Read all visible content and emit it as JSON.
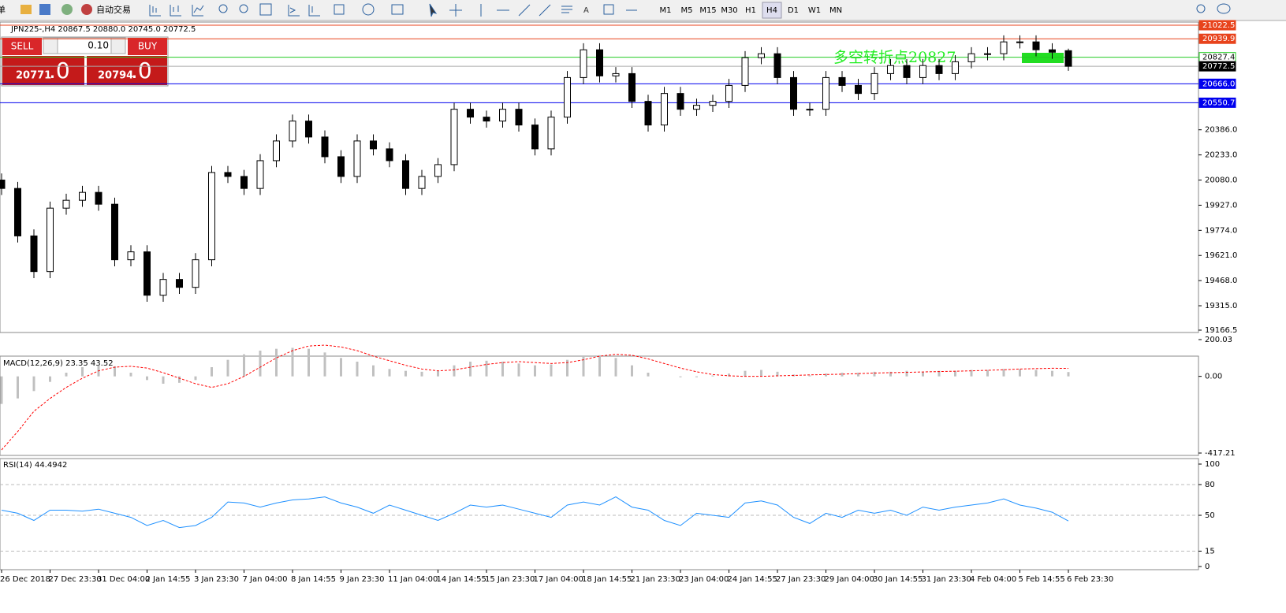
{
  "toolbar": {
    "cut_text": "单",
    "auto_trade": "自动交易",
    "timeframes": [
      "M1",
      "M5",
      "M15",
      "M30",
      "H1",
      "H4",
      "D1",
      "W1",
      "MN"
    ],
    "active_timeframe": "H4"
  },
  "trade_panel": {
    "sell": "SELL",
    "buy": "BUY",
    "volume": "0.10",
    "sell_price": "20771",
    "sell_fraction": ".0",
    "buy_price": "20794",
    "buy_fraction": ".0"
  },
  "chart_data": [
    {
      "type": "candlestick",
      "header": "JPN225-,H4  20867.5 20880.0 20745.0 20772.5",
      "annotation": "多空转折点20827",
      "categories": [
        "26 Dec 2018",
        null,
        null,
        "27 Dec 23:30",
        null,
        null,
        "31 Dec 04:00",
        null,
        null,
        "2 Jan 14:55",
        null,
        null,
        "3 Jan 23:30",
        null,
        null,
        "7 Jan 04:00",
        null,
        null,
        "8 Jan 14:55",
        null,
        null,
        "9 Jan 23:30",
        null,
        null,
        "11 Jan 04:00",
        null,
        null,
        "14 Jan 14:55",
        null,
        null,
        "15 Jan 23:30",
        null,
        null,
        "17 Jan 04:00",
        null,
        null,
        "18 Jan 14:55",
        null,
        null,
        "21 Jan 23:30",
        null,
        null,
        "23 Jan 04:00",
        null,
        null,
        "24 Jan 14:55",
        null,
        null,
        "27 Jan 23:30",
        null,
        null,
        "29 Jan 04:00",
        null,
        null,
        "30 Jan 14:55",
        null,
        null,
        "31 Jan 23:30",
        null,
        null,
        "4 Feb 04:00",
        null,
        null,
        "5 Feb 14:55",
        null,
        null,
        "6 Feb 23:30"
      ],
      "open": [
        20080,
        20029,
        19740,
        19523,
        19909,
        19957,
        20005,
        19933,
        19595,
        19643,
        19379,
        19475,
        19427,
        19595,
        20126,
        20102,
        20029,
        20198,
        20318,
        20439,
        20342,
        20222,
        20102,
        20318,
        20270,
        20198,
        20029,
        20102,
        20174,
        20511,
        20463,
        20439,
        20511,
        20415,
        20270,
        20463,
        20704,
        20873,
        20714,
        20728,
        20559,
        20415,
        20607,
        20511,
        20535,
        20559,
        20656,
        20825,
        20849,
        20704,
        20511,
        20511,
        20704,
        20656,
        20607,
        20728,
        20777,
        20704,
        20777,
        20728,
        20800,
        20849,
        20849,
        20921,
        20921,
        20873,
        20867.5
      ],
      "high": [
        20120,
        20069,
        19780,
        19949,
        19997,
        20045,
        20045,
        19973,
        19683,
        19683,
        19515,
        19515,
        19635,
        20166,
        20166,
        20142,
        20238,
        20358,
        20479,
        20479,
        20382,
        20262,
        20358,
        20358,
        20310,
        20238,
        20142,
        20214,
        20551,
        20551,
        20503,
        20551,
        20551,
        20455,
        20503,
        20744,
        20913,
        20913,
        20768,
        20768,
        20599,
        20647,
        20647,
        20575,
        20599,
        20696,
        20865,
        20889,
        20889,
        20744,
        20551,
        20744,
        20744,
        20696,
        20768,
        20817,
        20817,
        20817,
        20817,
        20840,
        20889,
        20889,
        20961,
        20961,
        20961,
        20913,
        20880.0
      ],
      "low": [
        19989,
        19700,
        19483,
        19483,
        19869,
        19917,
        19893,
        19555,
        19555,
        19339,
        19339,
        19387,
        19387,
        19555,
        20062,
        19989,
        19989,
        20158,
        20278,
        20302,
        20182,
        20062,
        20062,
        20230,
        20158,
        19989,
        19989,
        20062,
        20134,
        20423,
        20399,
        20399,
        20375,
        20230,
        20230,
        20423,
        20664,
        20674,
        20674,
        20519,
        20375,
        20375,
        20471,
        20471,
        20495,
        20519,
        20616,
        20785,
        20664,
        20471,
        20471,
        20471,
        20616,
        20567,
        20567,
        20688,
        20664,
        20664,
        20688,
        20688,
        20760,
        20809,
        20809,
        20881,
        20833,
        20818,
        20745.0
      ],
      "close": [
        20029,
        19740,
        19523,
        19909,
        19957,
        20005,
        19933,
        19595,
        19643,
        19379,
        19475,
        19427,
        19595,
        20126,
        20102,
        20029,
        20198,
        20318,
        20439,
        20342,
        20222,
        20102,
        20318,
        20270,
        20198,
        20029,
        20102,
        20174,
        20511,
        20463,
        20439,
        20511,
        20415,
        20270,
        20463,
        20704,
        20873,
        20714,
        20728,
        20559,
        20415,
        20607,
        20511,
        20535,
        20559,
        20656,
        20825,
        20849,
        20704,
        20511,
        20511,
        20704,
        20656,
        20607,
        20728,
        20777,
        20704,
        20777,
        20728,
        20800,
        20849,
        20849,
        20921,
        20921,
        20873,
        20858,
        20772.5
      ],
      "ylim": [
        19166.5,
        21022.5
      ],
      "yticks": [
        19166.5,
        {
          "value": 19315,
          "label": "19315.0"
        },
        {
          "value": 19468,
          "label": "19468.0"
        },
        {
          "value": 19621,
          "label": "19621.0"
        },
        {
          "value": 19774,
          "label": "19774.0"
        },
        {
          "value": 19927,
          "label": "19927.0"
        },
        {
          "value": 20080,
          "label": "20080.0"
        },
        {
          "value": 20233,
          "label": "20233.0"
        },
        {
          "value": 20386,
          "label": "20386.0"
        }
      ],
      "hlines": [
        {
          "value": 21022.5,
          "label": "21022.5",
          "color": "#e8431c"
        },
        {
          "value": 20939.9,
          "label": "20939.9",
          "color": "#e8431c"
        },
        {
          "value": 20827.4,
          "label": "20827.4",
          "color": "#22cc22"
        },
        {
          "value": 20772.5,
          "label": "20772.5",
          "color": "#000000"
        },
        {
          "value": 20666,
          "label": "20666.0",
          "color": "#0000ee"
        },
        {
          "value": 20550.7,
          "label": "20550.7",
          "color": "#0000ee"
        }
      ]
    },
    {
      "type": "macd",
      "title": "MACD(12,26,9) 23.35 43.52",
      "histogram": [
        -150,
        -120,
        -80,
        -30,
        20,
        50,
        60,
        55,
        20,
        -20,
        -40,
        -35,
        -20,
        50,
        90,
        120,
        140,
        150,
        155,
        150,
        130,
        100,
        80,
        60,
        40,
        30,
        25,
        30,
        60,
        80,
        85,
        80,
        70,
        60,
        65,
        90,
        110,
        115,
        100,
        60,
        20,
        0,
        -5,
        -5,
        5,
        15,
        30,
        35,
        25,
        10,
        5,
        15,
        20,
        20,
        25,
        25,
        30,
        25,
        30,
        30,
        35,
        35,
        40,
        40,
        35,
        30,
        23.35
      ],
      "signal": [
        -400,
        -300,
        -190,
        -120,
        -60,
        -10,
        30,
        50,
        55,
        45,
        20,
        -10,
        -40,
        -60,
        -40,
        0,
        50,
        100,
        140,
        165,
        170,
        160,
        140,
        110,
        85,
        60,
        40,
        30,
        35,
        50,
        65,
        75,
        80,
        75,
        70,
        75,
        90,
        110,
        120,
        115,
        95,
        70,
        45,
        25,
        10,
        3,
        0,
        0,
        3,
        5,
        8,
        10,
        12,
        15,
        18,
        20,
        22,
        24,
        26,
        28,
        30,
        33,
        36,
        40,
        42,
        44,
        43.52
      ],
      "hist_color": "#c0c0c0",
      "signal_color": "#ff0000",
      "ylim": [
        -417.21,
        200.03
      ],
      "yticks": [
        200.03,
        {
          "value": 0,
          "label": "0.00"
        },
        -417.21
      ]
    },
    {
      "type": "rsi",
      "title": "RSI(14) 44.4942",
      "color": "#1e90ff",
      "values": [
        55,
        52,
        45,
        55,
        55,
        54,
        56,
        52,
        48,
        40,
        45,
        38,
        40,
        48,
        63,
        62,
        58,
        62,
        65,
        66,
        68,
        62,
        58,
        52,
        60,
        55,
        50,
        45,
        52,
        60,
        58,
        60,
        56,
        52,
        48,
        60,
        63,
        60,
        68,
        58,
        55,
        45,
        40,
        52,
        50,
        48,
        62,
        64,
        60,
        48,
        42,
        52,
        48,
        55,
        52,
        55,
        50,
        58,
        55,
        58,
        60,
        62,
        66,
        60,
        57,
        53,
        44.4942
      ],
      "ylim": [
        0,
        100
      ],
      "yticks": [
        100,
        80,
        50,
        15,
        0
      ],
      "levels": [
        80,
        50,
        15
      ]
    }
  ]
}
